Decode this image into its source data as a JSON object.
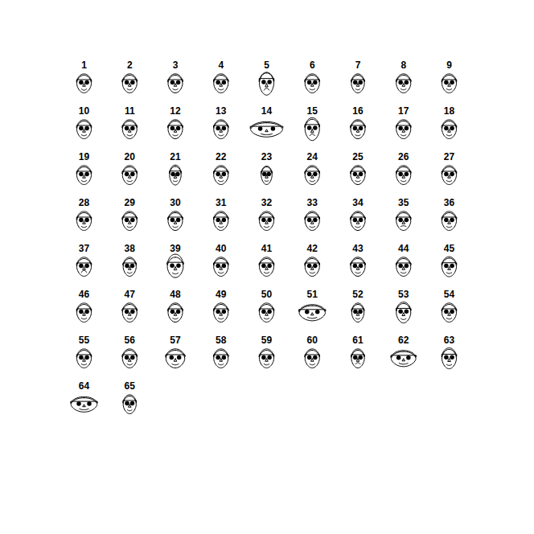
{
  "chart_data": {
    "type": "faces",
    "labels": [
      1,
      2,
      3,
      4,
      5,
      6,
      7,
      8,
      9,
      10,
      11,
      12,
      13,
      14,
      15,
      16,
      17,
      18,
      19,
      20,
      21,
      22,
      23,
      24,
      25,
      26,
      27,
      28,
      29,
      30,
      31,
      32,
      33,
      34,
      35,
      36,
      37,
      38,
      39,
      40,
      41,
      42,
      43,
      44,
      45,
      46,
      47,
      48,
      49,
      50,
      51,
      52,
      53,
      54,
      55,
      56,
      57,
      58,
      59,
      60,
      61,
      62,
      63,
      64,
      65
    ],
    "features": {
      "width": [
        1,
        1,
        1,
        1,
        1,
        1,
        0.9,
        1,
        1,
        1,
        1,
        1,
        1,
        2.2,
        1,
        1,
        1,
        1,
        1,
        1,
        0.8,
        1,
        0.75,
        1,
        1,
        1,
        1,
        1,
        1,
        1,
        1,
        1,
        1,
        1,
        1,
        1,
        1,
        0.9,
        1.1,
        1,
        1,
        1,
        1,
        1,
        1,
        1,
        1,
        1,
        1,
        1,
        1.8,
        0.85,
        1,
        1,
        1,
        1,
        1.3,
        1,
        1,
        1,
        0.9,
        1.7,
        1,
        1.8,
        0.9
      ],
      "height": [
        1,
        1,
        1,
        1,
        1.25,
        1,
        1,
        1,
        1,
        1,
        1,
        1,
        1,
        0.8,
        1.2,
        1,
        1,
        1,
        1,
        1,
        1.05,
        1,
        1,
        1,
        1,
        1,
        1,
        1,
        1,
        1,
        1,
        1,
        1,
        1,
        1,
        1,
        1,
        1,
        1.15,
        1,
        1,
        1,
        1,
        1,
        1.05,
        1,
        1,
        1,
        1,
        1,
        0.85,
        1,
        1.1,
        1,
        1,
        1,
        1,
        1,
        1,
        1,
        1,
        0.85,
        1.1,
        0.8,
        1
      ],
      "smile": [
        0.4,
        0.3,
        0.3,
        0.3,
        -0.6,
        0.3,
        0.3,
        0.3,
        0.3,
        0.3,
        0.3,
        0.3,
        0.3,
        0.3,
        -0.5,
        0.3,
        0.3,
        0.3,
        0.3,
        0.3,
        0.2,
        0.3,
        0.2,
        0.3,
        0.3,
        0.3,
        0.3,
        0.3,
        0.3,
        0.3,
        0.3,
        0.3,
        0.3,
        0.3,
        -0.2,
        0.3,
        -0.6,
        0.3,
        0.3,
        0.3,
        0.3,
        0.3,
        0.3,
        0.3,
        0.3,
        0.3,
        0.3,
        0.3,
        0.3,
        0.3,
        0.3,
        0.3,
        0.3,
        0.3,
        0.3,
        0.3,
        0.3,
        0.3,
        0.3,
        0.3,
        -0.4,
        0.3,
        0.3,
        0.3,
        0.3
      ],
      "hair": [
        0.5,
        0.5,
        0.5,
        0.5,
        0.2,
        0.5,
        0.5,
        0.5,
        0.5,
        0.5,
        0.5,
        0.5,
        0.5,
        0.5,
        0.5,
        0.5,
        0.5,
        0.5,
        0.5,
        0.5,
        0.5,
        0.5,
        0.3,
        0.5,
        0.5,
        0.5,
        0.5,
        0.5,
        0.5,
        0.5,
        0.5,
        0.5,
        0.5,
        0.5,
        0.5,
        0.5,
        0.5,
        0.5,
        1,
        0.5,
        0.5,
        0.5,
        0.5,
        0.5,
        0.5,
        0.5,
        0.5,
        0.5,
        0.5,
        0.5,
        0.5,
        0.5,
        0.5,
        0.5,
        0.5,
        0.5,
        0.5,
        0.5,
        0.5,
        0.5,
        0.5,
        0.5,
        0.5,
        0.5,
        0.5
      ]
    },
    "tick_labels": false
  }
}
